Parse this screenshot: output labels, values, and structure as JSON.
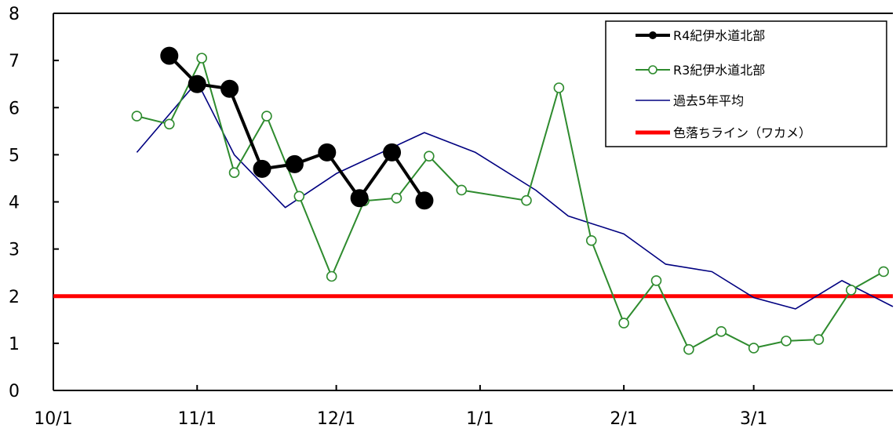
{
  "chart_data": {
    "type": "line",
    "title": "",
    "xlabel": "",
    "ylabel": "",
    "ylim": [
      0,
      8
    ],
    "yticks": [
      "0",
      "1",
      "2",
      "3",
      "4",
      "5",
      "6",
      "7",
      "8"
    ],
    "x_range": [
      "2022-10-01",
      "2023-03-31"
    ],
    "xticks": [
      {
        "date": "2022-10-01",
        "label": "10/1"
      },
      {
        "date": "2022-11-01",
        "label": "11/1"
      },
      {
        "date": "2022-12-01",
        "label": "12/1"
      },
      {
        "date": "2023-01-01",
        "label": "1/1"
      },
      {
        "date": "2023-02-01",
        "label": "2/1"
      },
      {
        "date": "2023-03-01",
        "label": "3/1"
      }
    ],
    "grid": false,
    "legend_position": "top-right",
    "series": [
      {
        "name": "R4紀伊水道北部",
        "color": "#000000",
        "marker": "filled-circle",
        "points": [
          [
            "2022-10-26",
            7.1
          ],
          [
            "2022-11-01",
            6.5
          ],
          [
            "2022-11-08",
            6.4
          ],
          [
            "2022-11-15",
            4.7
          ],
          [
            "2022-11-22",
            4.8
          ],
          [
            "2022-11-29",
            5.05
          ],
          [
            "2022-12-06",
            4.08
          ],
          [
            "2022-12-13",
            5.05
          ],
          [
            "2022-12-20",
            4.03
          ]
        ]
      },
      {
        "name": "R3紀伊水道北部",
        "color": "#2e8b2e",
        "marker": "open-circle",
        "points": [
          [
            "2021-10-19",
            5.82
          ],
          [
            "2021-10-26",
            5.65
          ],
          [
            "2021-11-02",
            7.05
          ],
          [
            "2021-11-09",
            4.62
          ],
          [
            "2021-11-16",
            5.82
          ],
          [
            "2021-11-23",
            4.12
          ],
          [
            "2021-11-30",
            2.42
          ],
          [
            "2021-12-07",
            4.02
          ],
          [
            "2021-12-14",
            4.08
          ],
          [
            "2021-12-21",
            4.97
          ],
          [
            "2021-12-28",
            4.25
          ],
          [
            "2022-01-11",
            4.03
          ],
          [
            "2022-01-18",
            6.42
          ],
          [
            "2022-01-25",
            3.18
          ],
          [
            "2022-02-01",
            1.43
          ],
          [
            "2022-02-08",
            2.33
          ],
          [
            "2022-02-15",
            0.87
          ],
          [
            "2022-02-22",
            1.25
          ],
          [
            "2022-03-01",
            0.9
          ],
          [
            "2022-03-08",
            1.05
          ],
          [
            "2022-03-15",
            1.08
          ],
          [
            "2022-03-22",
            2.13
          ],
          [
            "2022-03-29",
            2.52
          ]
        ]
      },
      {
        "name": "過去5年平均",
        "color": "#000080",
        "marker": "none",
        "points": [
          [
            "10-19",
            5.05
          ],
          [
            "11-01",
            6.55
          ],
          [
            "11-09",
            5.0
          ],
          [
            "11-20",
            3.88
          ],
          [
            "12-01",
            4.6
          ],
          [
            "12-20",
            5.47
          ],
          [
            "12-31",
            5.05
          ],
          [
            "01-13",
            4.25
          ],
          [
            "01-20",
            3.7
          ],
          [
            "02-01",
            3.32
          ],
          [
            "02-10",
            2.68
          ],
          [
            "02-20",
            2.52
          ],
          [
            "03-01",
            1.97
          ],
          [
            "03-10",
            1.73
          ],
          [
            "03-20",
            2.33
          ],
          [
            "03-31",
            1.78
          ]
        ]
      },
      {
        "name": "色落ちライン（ワカメ）",
        "color": "#ff0000",
        "marker": "none",
        "points": [
          [
            "10-01",
            2.0
          ],
          [
            "03-31",
            2.0
          ]
        ]
      }
    ]
  }
}
